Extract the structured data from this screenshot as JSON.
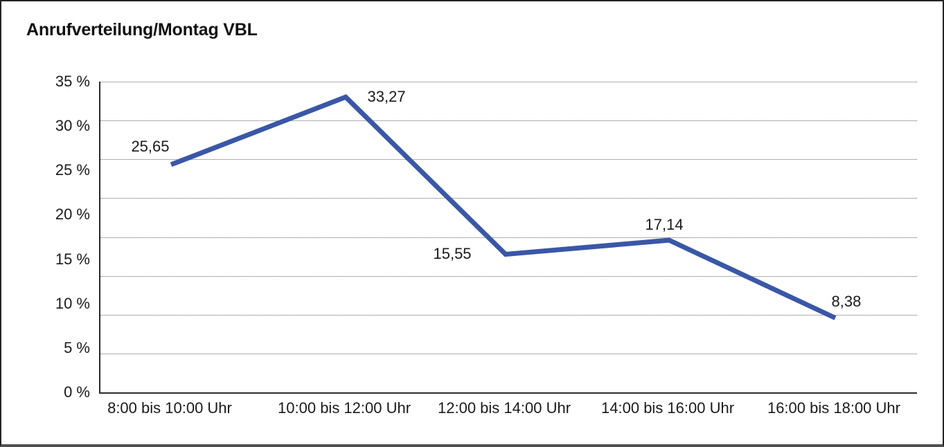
{
  "window": {
    "background": "#ffffff",
    "border_color": "#242424",
    "bottom_edge_color": "#515151"
  },
  "chart_data": {
    "type": "line",
    "title": "Anrufverteilung/Montag VBL",
    "categories": [
      "8:00 bis 10:00 Uhr",
      "10:00 bis 12:00 Uhr",
      "12:00 bis 14:00 Uhr",
      "14:00 bis 16:00 Uhr",
      "16:00 bis 18:00 Uhr"
    ],
    "series": [
      {
        "name": "Anrufverteilung",
        "values": [
          25.65,
          33.27,
          15.55,
          17.14,
          8.38
        ],
        "point_labels": [
          "25,65",
          "33,27",
          "15,55",
          "17,14",
          "8,38"
        ]
      }
    ],
    "xlabel": "",
    "ylabel": "",
    "ylim": [
      0,
      35
    ],
    "yticks": [
      {
        "v": 35,
        "t": "35 %"
      },
      {
        "v": 30,
        "t": "30 %"
      },
      {
        "v": 25,
        "t": "25 %"
      },
      {
        "v": 20,
        "t": "20 %"
      },
      {
        "v": 15,
        "t": "15 %"
      },
      {
        "v": 10,
        "t": "10 %"
      },
      {
        "v": 5,
        "t": "5 %"
      },
      {
        "v": 0,
        "t": "0 %"
      }
    ],
    "grid": "horizontal-dotted",
    "gridline_intervals": 8,
    "legend": "none",
    "line_color": "#3A57A7",
    "text_color": "#1a1a1a",
    "grid_color": "#5e5e5e",
    "axis_color": "#2b2b2b"
  }
}
